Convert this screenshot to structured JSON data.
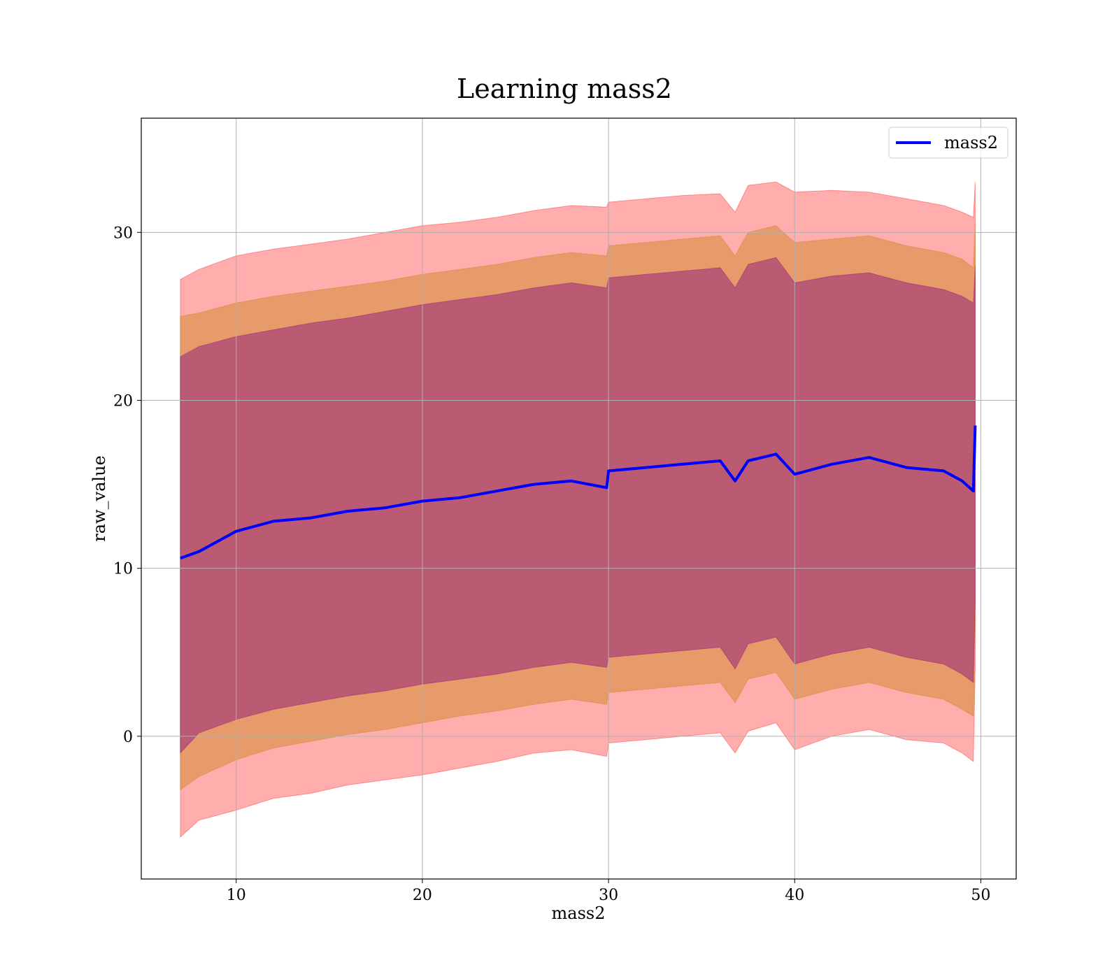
{
  "chart_data": {
    "type": "area",
    "title": "Learning mass2",
    "xlabel": "mass2",
    "ylabel": "raw_value",
    "xlim": [
      4.9,
      51.9
    ],
    "ylim": [
      -8.5,
      36.8
    ],
    "xticks": [
      10,
      20,
      30,
      40,
      50
    ],
    "yticks": [
      0,
      10,
      20,
      30
    ],
    "x_tick_labels": [
      "10",
      "20",
      "30",
      "40",
      "50"
    ],
    "y_tick_labels": [
      "0",
      "10",
      "20",
      "30"
    ],
    "grid": true,
    "legend": {
      "position": "top-right",
      "entries": [
        "mass2"
      ]
    },
    "colors": {
      "line": "#0000ff",
      "band_outer": "#ff0000",
      "band_middle": "#bf7f00",
      "band_inner": "#7f007f",
      "grid": "#b0b0b0"
    },
    "x": [
      7.0,
      8.0,
      10.0,
      12.0,
      14.0,
      16.0,
      18.0,
      20.0,
      22.0,
      24.0,
      26.0,
      28.0,
      29.9,
      30.0,
      32.0,
      34.0,
      36.0,
      36.8,
      37.5,
      39.0,
      40.0,
      42.0,
      44.0,
      46.0,
      48.0,
      49.0,
      49.6,
      49.7
    ],
    "series": [
      {
        "name": "mass2",
        "values": [
          10.6,
          11.0,
          12.2,
          12.8,
          13.0,
          13.4,
          13.6,
          14.0,
          14.2,
          14.6,
          15.0,
          15.2,
          14.8,
          15.8,
          16.0,
          16.2,
          16.4,
          15.2,
          16.4,
          16.8,
          15.6,
          16.2,
          16.6,
          16.0,
          15.8,
          15.2,
          14.6,
          18.5
        ]
      }
    ],
    "bands": [
      {
        "upper": [
          27.2,
          27.8,
          28.6,
          29.0,
          29.3,
          29.6,
          30.0,
          30.4,
          30.6,
          30.9,
          31.3,
          31.6,
          31.5,
          31.8,
          32.0,
          32.2,
          32.3,
          31.2,
          32.8,
          33.0,
          32.4,
          32.5,
          32.4,
          32.0,
          31.6,
          31.2,
          30.9,
          33.0
        ],
        "lower": [
          -6.0,
          -5.0,
          -4.4,
          -3.7,
          -3.4,
          -2.9,
          -2.6,
          -2.3,
          -1.9,
          -1.5,
          -1.0,
          -0.8,
          -1.2,
          -0.4,
          -0.2,
          0.0,
          0.2,
          -1.0,
          0.3,
          0.8,
          -0.8,
          0.0,
          0.4,
          -0.2,
          -0.4,
          -1.0,
          -1.5,
          4.0
        ]
      },
      {
        "upper": [
          25.0,
          25.2,
          25.8,
          26.2,
          26.5,
          26.8,
          27.1,
          27.5,
          27.8,
          28.1,
          28.5,
          28.8,
          28.6,
          29.2,
          29.4,
          29.6,
          29.8,
          28.6,
          30.0,
          30.4,
          29.4,
          29.6,
          29.8,
          29.2,
          28.8,
          28.4,
          27.9,
          30.5
        ],
        "lower": [
          -3.2,
          -2.4,
          -1.4,
          -0.7,
          -0.3,
          0.1,
          0.4,
          0.8,
          1.2,
          1.5,
          1.9,
          2.2,
          1.9,
          2.6,
          2.8,
          3.0,
          3.2,
          2.0,
          3.4,
          3.8,
          2.2,
          2.8,
          3.2,
          2.6,
          2.2,
          1.6,
          1.2,
          6.0
        ]
      },
      {
        "upper": [
          22.6,
          23.2,
          23.8,
          24.2,
          24.6,
          24.9,
          25.3,
          25.7,
          26.0,
          26.3,
          26.7,
          27.0,
          26.7,
          27.3,
          27.5,
          27.7,
          27.9,
          26.7,
          28.1,
          28.5,
          27.0,
          27.4,
          27.6,
          27.0,
          26.6,
          26.2,
          25.8,
          28.0
        ],
        "lower": [
          -1.0,
          0.2,
          1.0,
          1.6,
          2.0,
          2.4,
          2.7,
          3.1,
          3.4,
          3.7,
          4.1,
          4.4,
          4.1,
          4.7,
          4.9,
          5.1,
          5.3,
          4.0,
          5.5,
          5.9,
          4.3,
          4.9,
          5.3,
          4.7,
          4.3,
          3.7,
          3.2,
          8.0
        ]
      }
    ]
  }
}
